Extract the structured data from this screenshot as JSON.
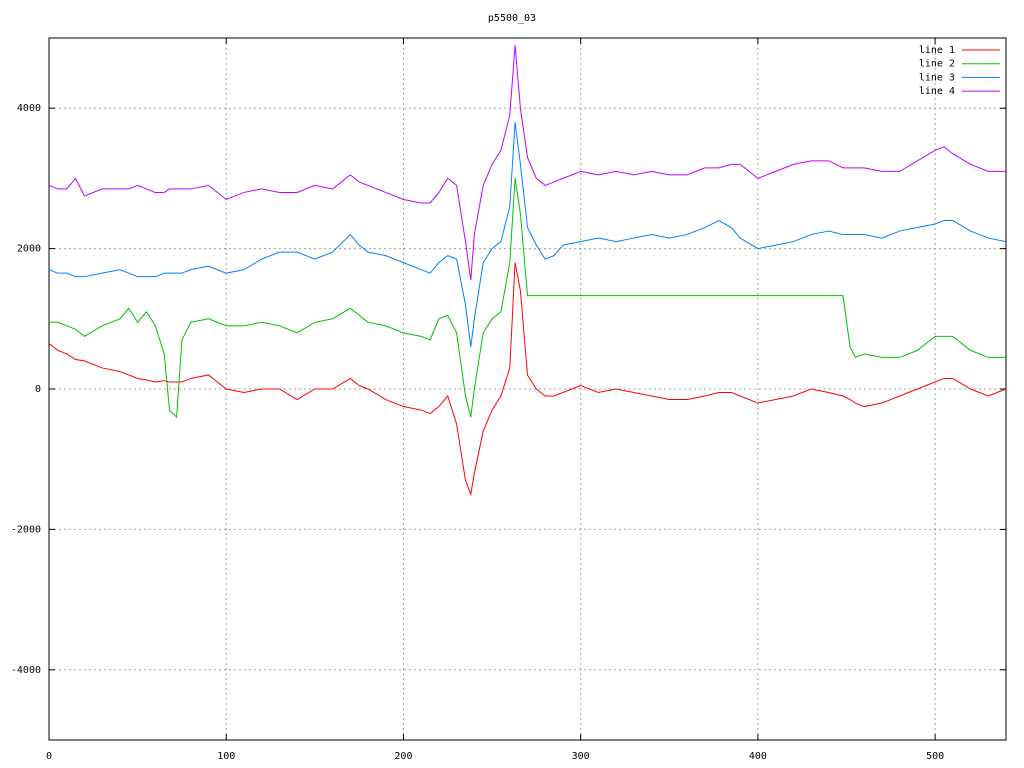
{
  "chart_data": {
    "type": "line",
    "title": "p5500_03",
    "x": [
      0,
      5,
      10,
      15,
      20,
      30,
      40,
      45,
      50,
      55,
      60,
      65,
      68,
      72,
      75,
      80,
      90,
      100,
      110,
      120,
      130,
      140,
      150,
      160,
      170,
      175,
      180,
      190,
      200,
      210,
      215,
      220,
      225,
      230,
      235,
      238,
      240,
      245,
      250,
      255,
      260,
      263,
      266,
      270,
      275,
      280,
      285,
      290,
      300,
      310,
      320,
      330,
      340,
      350,
      360,
      370,
      378,
      385,
      390,
      400,
      410,
      420,
      430,
      440,
      448,
      452,
      455,
      460,
      470,
      480,
      490,
      500,
      505,
      510,
      520,
      530,
      540
    ],
    "series": [
      {
        "name": "line 1",
        "color": "#ff0000",
        "values": [
          650,
          550,
          500,
          420,
          400,
          300,
          250,
          200,
          150,
          130,
          100,
          120,
          100,
          100,
          100,
          150,
          200,
          0,
          -50,
          0,
          0,
          -150,
          0,
          0,
          150,
          50,
          0,
          -150,
          -250,
          -300,
          -350,
          -250,
          -100,
          -500,
          -1300,
          -1500,
          -1200,
          -600,
          -300,
          -100,
          300,
          1800,
          1400,
          200,
          0,
          -100,
          -100,
          -50,
          50,
          -50,
          0,
          -50,
          -100,
          -150,
          -150,
          -100,
          -50,
          -50,
          -100,
          -200,
          -150,
          -100,
          0,
          -50,
          -100,
          -150,
          -200,
          -250,
          -200,
          -100,
          0,
          100,
          150,
          150,
          0,
          -100,
          0
        ]
      },
      {
        "name": "line 2",
        "color": "#00c000",
        "values": [
          950,
          950,
          900,
          850,
          750,
          900,
          1000,
          1150,
          950,
          1100,
          900,
          500,
          -300,
          -400,
          700,
          950,
          1000,
          900,
          900,
          950,
          900,
          800,
          950,
          1000,
          1150,
          1050,
          950,
          900,
          800,
          750,
          700,
          1000,
          1050,
          800,
          -100,
          -400,
          0,
          800,
          1000,
          1100,
          1800,
          3000,
          2500,
          1330,
          1330,
          1330,
          1330,
          1330,
          1330,
          1330,
          1330,
          1330,
          1330,
          1330,
          1330,
          1330,
          1330,
          1330,
          1330,
          1330,
          1330,
          1330,
          1330,
          1330,
          1330,
          600,
          450,
          500,
          450,
          450,
          550,
          750,
          750,
          750,
          550,
          450,
          450
        ]
      },
      {
        "name": "line 3",
        "color": "#0080ff",
        "values": [
          1700,
          1650,
          1650,
          1600,
          1600,
          1650,
          1700,
          1650,
          1600,
          1600,
          1600,
          1650,
          1650,
          1650,
          1650,
          1700,
          1750,
          1650,
          1700,
          1850,
          1950,
          1950,
          1850,
          1950,
          2200,
          2050,
          1950,
          1900,
          1800,
          1700,
          1650,
          1800,
          1900,
          1850,
          1200,
          600,
          1000,
          1800,
          2000,
          2100,
          2600,
          3800,
          3200,
          2300,
          2050,
          1850,
          1900,
          2050,
          2100,
          2150,
          2100,
          2150,
          2200,
          2150,
          2200,
          2300,
          2400,
          2300,
          2150,
          2000,
          2050,
          2100,
          2200,
          2250,
          2200,
          2200,
          2200,
          2200,
          2150,
          2250,
          2300,
          2350,
          2400,
          2400,
          2250,
          2150,
          2100
        ]
      },
      {
        "name": "line 4",
        "color": "#c000ff",
        "values": [
          2900,
          2850,
          2850,
          3000,
          2750,
          2850,
          2850,
          2850,
          2900,
          2850,
          2800,
          2800,
          2850,
          2850,
          2850,
          2850,
          2900,
          2700,
          2800,
          2850,
          2800,
          2800,
          2900,
          2850,
          3050,
          2950,
          2900,
          2800,
          2700,
          2650,
          2650,
          2800,
          3000,
          2900,
          2100,
          1550,
          2200,
          2900,
          3200,
          3400,
          3900,
          4900,
          4000,
          3300,
          3000,
          2900,
          2950,
          3000,
          3100,
          3050,
          3100,
          3050,
          3100,
          3050,
          3050,
          3150,
          3150,
          3200,
          3200,
          3000,
          3100,
          3200,
          3250,
          3250,
          3150,
          3150,
          3150,
          3150,
          3100,
          3100,
          3250,
          3400,
          3450,
          3350,
          3200,
          3100,
          3100
        ]
      }
    ],
    "xlim": [
      0,
      540
    ],
    "ylim": [
      -5000,
      5000
    ],
    "xticks": [
      0,
      100,
      200,
      300,
      400,
      500
    ],
    "yticks": [
      -4000,
      -2000,
      0,
      2000,
      4000
    ],
    "grid": true,
    "legend": "top-right"
  }
}
